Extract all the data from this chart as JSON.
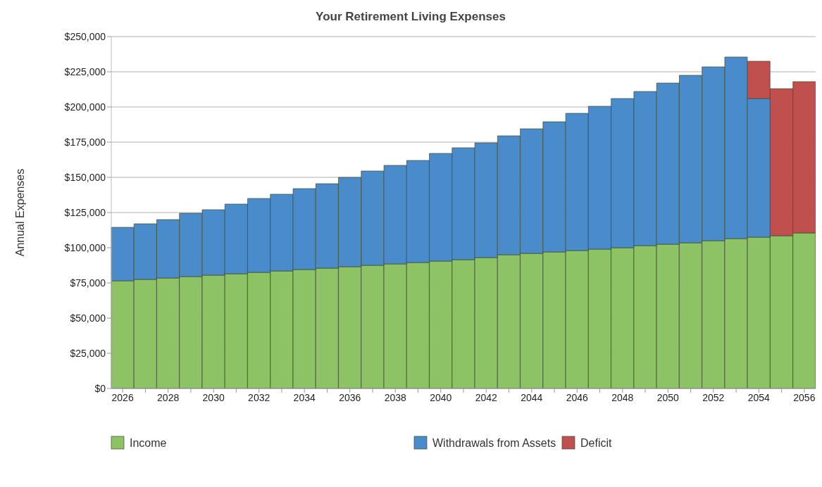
{
  "chart_data": {
    "type": "bar",
    "title": "Your Retirement Living Expenses",
    "ylabel": "Annual Expenses",
    "categories": [
      "2026",
      null,
      "2028",
      null,
      "2030",
      null,
      "2032",
      null,
      "2034",
      null,
      "2036",
      null,
      "2038",
      null,
      "2040",
      null,
      "2042",
      null,
      "2044",
      null,
      "2046",
      null,
      "2048",
      null,
      "2050",
      null,
      "2052",
      null,
      "2054",
      null,
      "2056"
    ],
    "stacked": true,
    "series": [
      {
        "name": "Income",
        "color": "#8dc265",
        "values": [
          76500,
          77500,
          78500,
          79500,
          80500,
          81500,
          82500,
          83500,
          84500,
          85500,
          86500,
          87500,
          88500,
          89500,
          90500,
          91500,
          93000,
          95000,
          96000,
          97000,
          98000,
          99000,
          100000,
          101500,
          102500,
          103500,
          105000,
          106500,
          107500,
          108500,
          110500
        ]
      },
      {
        "name": "Withdrawals from Assets",
        "color": "#4a8ccb",
        "values": [
          38000,
          39500,
          41500,
          45000,
          46500,
          49500,
          52500,
          54500,
          57500,
          60000,
          63500,
          67000,
          70000,
          72500,
          76500,
          79500,
          81500,
          84500,
          88500,
          92500,
          97500,
          101500,
          106000,
          109500,
          114500,
          119000,
          123500,
          129000,
          98500,
          null,
          null
        ]
      },
      {
        "name": "Deficit",
        "color": "#c0504d",
        "values": [
          null,
          null,
          null,
          null,
          null,
          null,
          null,
          null,
          null,
          null,
          null,
          null,
          null,
          null,
          null,
          null,
          null,
          null,
          null,
          null,
          null,
          null,
          null,
          null,
          null,
          null,
          null,
          null,
          26500,
          104500,
          107500
        ]
      }
    ],
    "ylim": [
      0,
      250000
    ],
    "yticks": [
      {
        "value": 0,
        "label": "$0"
      },
      {
        "value": 25000,
        "label": "$25,000"
      },
      {
        "value": 50000,
        "label": "$50,000"
      },
      {
        "value": 75000,
        "label": "$75,000"
      },
      {
        "value": 100000,
        "label": "$100,000"
      },
      {
        "value": 125000,
        "label": "$125,000"
      },
      {
        "value": 150000,
        "label": "$150,000"
      },
      {
        "value": 175000,
        "label": "$175,000"
      },
      {
        "value": 200000,
        "label": "$200,000"
      },
      {
        "value": 225000,
        "label": "$225,000"
      },
      {
        "value": 250000,
        "label": "$250,000"
      }
    ],
    "grid": "y",
    "legend": "bottom"
  }
}
